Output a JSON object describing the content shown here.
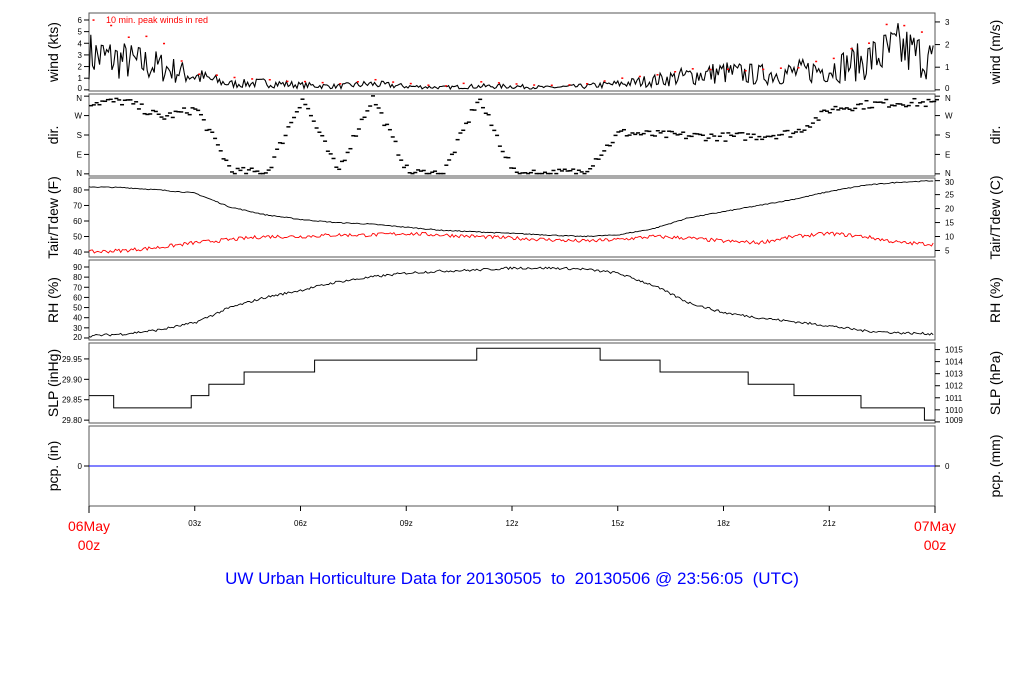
{
  "chart_data": [
    {
      "type": "line",
      "panel": "wind",
      "ylabel": "wind (kts)",
      "ylabel_right": "wind (m/s)",
      "ylim": [
        -0.1,
        6.6
      ],
      "yticks": [
        0,
        1,
        2,
        3,
        4,
        5,
        6
      ],
      "yticks_right": [
        0,
        1,
        2,
        3
      ],
      "annotation": "10 min. peak winds in red",
      "x_hours": [
        0,
        1,
        2,
        3,
        4,
        5,
        6,
        7,
        8,
        9,
        10,
        11,
        12,
        13,
        14,
        15,
        16,
        17,
        18,
        19,
        20,
        21,
        22,
        23,
        24
      ],
      "series": [
        {
          "values": [
            3,
            2.5,
            2,
            1.2,
            0.5,
            0.6,
            0.4,
            0.3,
            0.5,
            0.3,
            0.2,
            0.3,
            0.3,
            0.2,
            0.3,
            0.5,
            0.8,
            1.2,
            1.5,
            1.3,
            1.5,
            1.8,
            2.5,
            3.5,
            2.5
          ],
          "color": "#000000"
        },
        {
          "values": [
            6,
            5.2,
            4.6,
            1.5,
            1.2,
            1,
            0.8,
            0.6,
            1,
            0.6,
            0.4,
            0.8,
            0.6,
            0.5,
            0.6,
            1,
            1.4,
            2,
            2.1,
            1.9,
            2.2,
            2.8,
            4.5,
            6.3,
            5
          ],
          "color": "#ff0000",
          "style": "points"
        }
      ]
    },
    {
      "type": "scatter",
      "panel": "dir",
      "ylabel": "dir.",
      "ylabel_right": "dir.",
      "yticks": [
        "N",
        "W",
        "S",
        "E",
        "N"
      ],
      "ytick_values": [
        360,
        270,
        180,
        90,
        0
      ],
      "ylim": [
        -10,
        370
      ],
      "x_hours": [
        0,
        1,
        2,
        3,
        4,
        5,
        6,
        7,
        8,
        9,
        10,
        11,
        12,
        13,
        14,
        15,
        16,
        17,
        18,
        19,
        20,
        21,
        22,
        23,
        24
      ],
      "series": [
        {
          "values": [
            330,
            335,
            260,
            300,
            10,
            5,
            350,
            10,
            355,
            5,
            0,
            350,
            5,
            0,
            10,
            190,
            180,
            175,
            170,
            175,
            190,
            300,
            320,
            330,
            325
          ],
          "color": "#000000"
        }
      ]
    },
    {
      "type": "line",
      "panel": "temp",
      "ylabel": "Tair/Tdew (F)",
      "ylabel_right": "Tair/Tdew (C)",
      "ylim": [
        36.8,
        87.7
      ],
      "yticks": [
        40,
        50,
        60,
        70,
        80
      ],
      "yticks_right": [
        5,
        10,
        15,
        20,
        25,
        30
      ],
      "x_hours": [
        0,
        1,
        2,
        3,
        4,
        5,
        6,
        7,
        8,
        9,
        10,
        11,
        12,
        13,
        14,
        15,
        16,
        17,
        18,
        19,
        20,
        21,
        22,
        23,
        24
      ],
      "series": [
        {
          "values": [
            82,
            81.5,
            80,
            78,
            69,
            64,
            61,
            59,
            58,
            56,
            54,
            53,
            52,
            51,
            50,
            51,
            55,
            62,
            66,
            70,
            74,
            79,
            83,
            85,
            86
          ],
          "color": "#000000"
        },
        {
          "values": [
            40,
            41,
            43,
            46,
            48,
            50,
            50,
            51,
            51,
            52,
            51,
            50,
            49,
            48,
            47,
            48,
            50,
            49,
            47,
            46,
            50,
            52,
            50,
            46,
            45
          ],
          "color": "#ff0000"
        }
      ]
    },
    {
      "type": "line",
      "panel": "rh",
      "ylabel": "RH (%)",
      "ylabel_right": "RH (%)",
      "ylim": [
        18,
        96.9
      ],
      "yticks": [
        20,
        30,
        40,
        50,
        60,
        70,
        80,
        90
      ],
      "x_hours": [
        0,
        1,
        2,
        3,
        4,
        5,
        6,
        7,
        8,
        9,
        10,
        11,
        12,
        13,
        14,
        15,
        16,
        17,
        18,
        19,
        20,
        21,
        22,
        23,
        24
      ],
      "series": [
        {
          "values": [
            22,
            24,
            28,
            35,
            50,
            60,
            67,
            75,
            80,
            84,
            86,
            87,
            89,
            89,
            88,
            84,
            72,
            55,
            45,
            40,
            36,
            32,
            27,
            25,
            24
          ],
          "color": "#000000"
        }
      ]
    },
    {
      "type": "line",
      "panel": "slp",
      "ylabel": "SLP (inHg)",
      "ylabel_right": "SLP (hPa)",
      "ylim": [
        29.793,
        29.989
      ],
      "yticks": [
        "29.80",
        "29.85",
        "29.90",
        "29.95"
      ],
      "yticks_right": [
        1009,
        1010,
        1011,
        1012,
        1013,
        1014,
        1015
      ],
      "steps": [
        [
          0,
          29.86
        ],
        [
          0.7,
          29.83
        ],
        [
          2.9,
          29.86
        ],
        [
          3.4,
          29.888
        ],
        [
          4.4,
          29.918
        ],
        [
          6.4,
          29.947
        ],
        [
          11,
          29.976
        ],
        [
          14.5,
          29.947
        ],
        [
          16.2,
          29.918
        ],
        [
          18.7,
          29.888
        ],
        [
          20,
          29.86
        ],
        [
          21.9,
          29.83
        ],
        [
          23.7,
          29.8
        ],
        [
          24,
          29.8
        ]
      ]
    },
    {
      "type": "line",
      "panel": "pcp",
      "ylabel": "pcp. (in)",
      "ylabel_right": "pcp. (mm)",
      "ylim": [
        -1,
        1
      ],
      "yticks": [
        0
      ],
      "yticks_right": [
        0
      ],
      "series": [
        {
          "values": [
            0,
            0
          ],
          "color": "#0000ff"
        }
      ]
    }
  ],
  "xaxis": {
    "ticks": [
      {
        "h": 3,
        "label": "03z"
      },
      {
        "h": 6,
        "label": "06z"
      },
      {
        "h": 9,
        "label": "09z"
      },
      {
        "h": 12,
        "label": "12z"
      },
      {
        "h": 15,
        "label": "15z"
      },
      {
        "h": 18,
        "label": "18z"
      },
      {
        "h": 21,
        "label": "21z"
      }
    ],
    "start": [
      "06May",
      "00z"
    ],
    "end": [
      "07May",
      "00z"
    ],
    "edge_color": "#ff0000"
  },
  "title": "UW Urban Horticulture Data for 20130505  to  20130506 @ 23:56:05  (UTC)",
  "title_color": "#0000ff"
}
